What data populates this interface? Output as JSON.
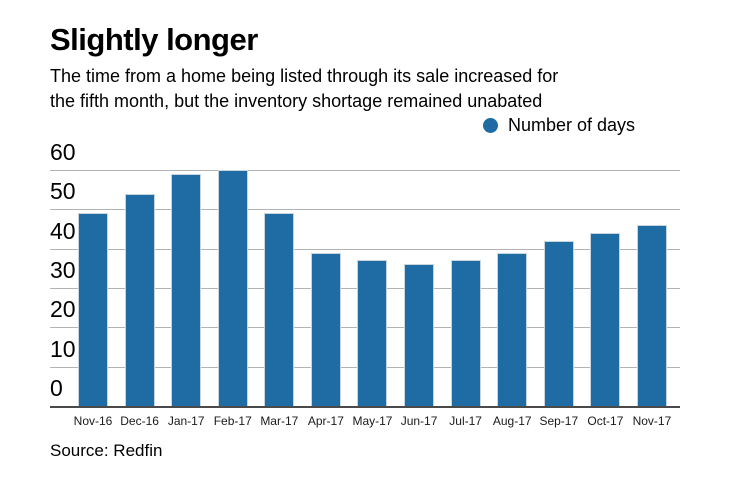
{
  "header": {
    "title": "Slightly longer",
    "subtitle_line1": "The time from a home being listed through its sale increased for",
    "subtitle_line2": "the fifth month, but the inventory shortage remained unabated"
  },
  "legend": {
    "label": "Number of days"
  },
  "source": {
    "text": "Source: Redfin"
  },
  "colors": {
    "bar": "#1e6ca3",
    "gridline": "#b3b3b3",
    "axis_line": "#4a4a4a"
  },
  "chart_data": {
    "type": "bar",
    "title": "Slightly longer",
    "categories": [
      "Nov-16",
      "Dec-16",
      "Jan-17",
      "Feb-17",
      "Mar-17",
      "Apr-17",
      "May-17",
      "Jun-17",
      "Jul-17",
      "Aug-17",
      "Sep-17",
      "Oct-17",
      "Nov-17"
    ],
    "values": [
      49,
      54,
      59,
      60,
      49,
      39,
      37,
      36,
      37,
      39,
      42,
      44,
      46
    ],
    "series_name": "Number of days",
    "xlabel": "",
    "ylabel": "",
    "ylim": [
      0,
      60
    ],
    "yticks": [
      0,
      10,
      20,
      30,
      40,
      50,
      60
    ],
    "grid": true,
    "legend_position": "top-right"
  }
}
